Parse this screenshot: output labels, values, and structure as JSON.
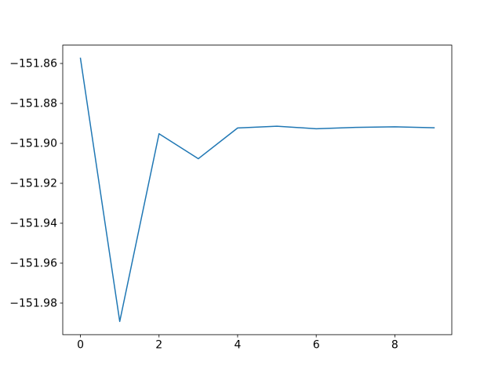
{
  "figure": {
    "background_color": "#ffffff"
  },
  "chart_data": {
    "type": "line",
    "title": "",
    "xlabel": "",
    "ylabel": "",
    "x": [
      0,
      1,
      2,
      3,
      4,
      5,
      6,
      7,
      8,
      9
    ],
    "y": [
      -151.8574,
      -151.9892,
      -151.8952,
      -151.9077,
      -151.8923,
      -151.8914,
      -151.8927,
      -151.892,
      -151.8917,
      -151.8922
    ],
    "xlim": [
      -0.45,
      9.45
    ],
    "ylim": [
      -151.99579,
      -151.85081
    ],
    "xticks": {
      "values": [
        0,
        2,
        4,
        6,
        8
      ],
      "labels": [
        "0",
        "2",
        "4",
        "6",
        "8"
      ]
    },
    "yticks": {
      "values": [
        -151.86,
        -151.88,
        -151.9,
        -151.92,
        -151.94,
        -151.96,
        -151.98
      ],
      "labels": [
        "−151.86",
        "−151.88",
        "−151.90",
        "−151.92",
        "−151.94",
        "−151.96",
        "−151.98"
      ]
    },
    "grid": false,
    "legend_position": null,
    "line_color": "#1f77b4",
    "line_width": 1.5,
    "spine_color": "#000000",
    "tick_color": "#000000",
    "tick_label_color": "#000000",
    "background_color": "#ffffff"
  }
}
